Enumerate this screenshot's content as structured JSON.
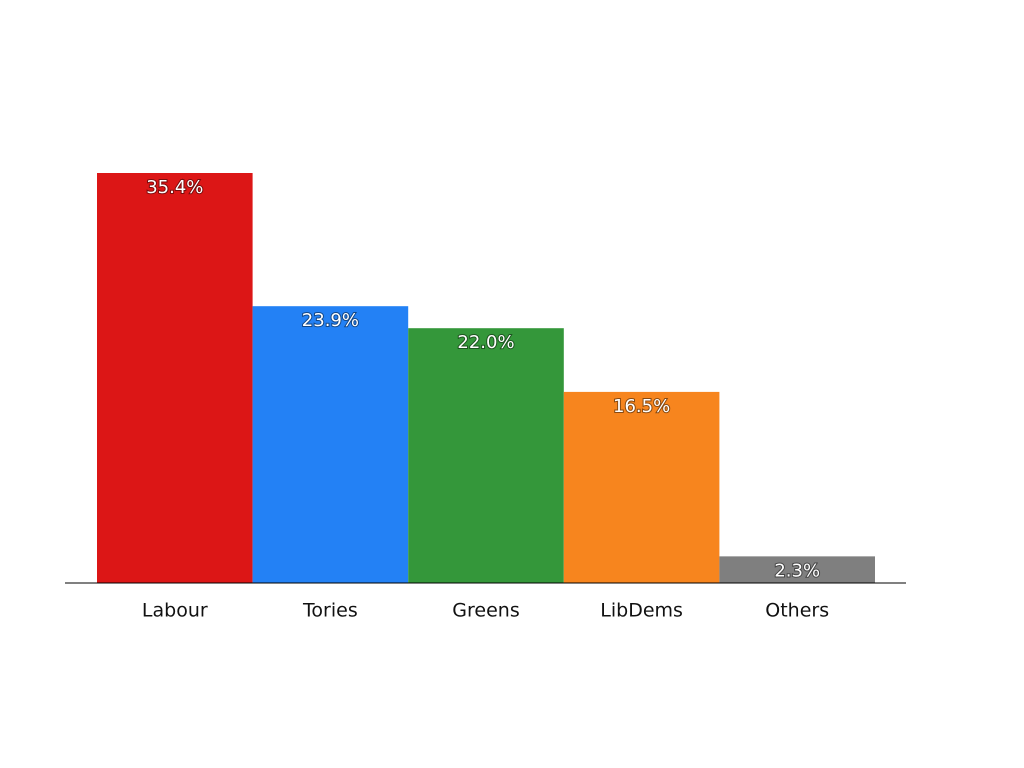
{
  "chart_data": {
    "type": "bar",
    "categories": [
      "Labour",
      "Tories",
      "Greens",
      "LibDems",
      "Others"
    ],
    "values": [
      35.4,
      23.9,
      22.0,
      16.5,
      2.3
    ],
    "value_labels": [
      "35.4%",
      "23.9%",
      "22.0%",
      "16.5%",
      "2.3%"
    ],
    "colors": [
      "#dc1616",
      "#2381f5",
      "#34973a",
      "#f7851e",
      "#7f7f7f"
    ]
  }
}
